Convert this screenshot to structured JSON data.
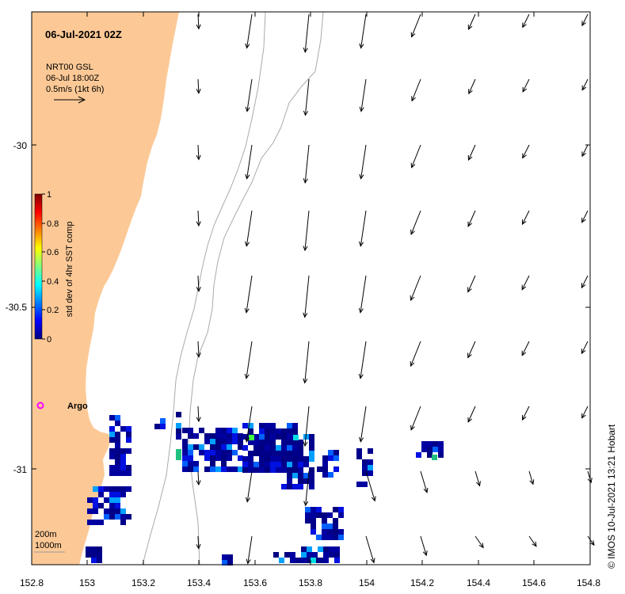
{
  "map": {
    "title": "06-Jul-2021 02Z",
    "product": {
      "line1": "NRT00 GSL",
      "line2": "06-Jul 18:00Z",
      "line3": "0.5m/s (1kt 6h)"
    },
    "colorbar": {
      "label": "std dev of 4hr SST comp",
      "ticks": [
        "0",
        "0.2",
        "0.4",
        "0.6",
        "0.8",
        "1"
      ],
      "colors": [
        "#00007f",
        "#0000ff",
        "#007fff",
        "#00ffff",
        "#7fff7f",
        "#ffff00",
        "#ff7f00",
        "#ff0000",
        "#7f0000"
      ]
    },
    "marker": {
      "label": "Argo",
      "color": "#ff00ff"
    },
    "depth_labels": [
      "200m",
      "1000m"
    ],
    "credit": "© IMOS 10-Jul-2021 13:21 Hobart",
    "x_ticks": [
      "152.8",
      "153",
      "153.2",
      "153.4",
      "153.6",
      "153.8",
      "154",
      "154.2",
      "154.4",
      "154.6",
      "154.8"
    ],
    "y_ticks": [
      "-30",
      "-30.5",
      "-31"
    ],
    "land_color": "#fcc996"
  }
}
